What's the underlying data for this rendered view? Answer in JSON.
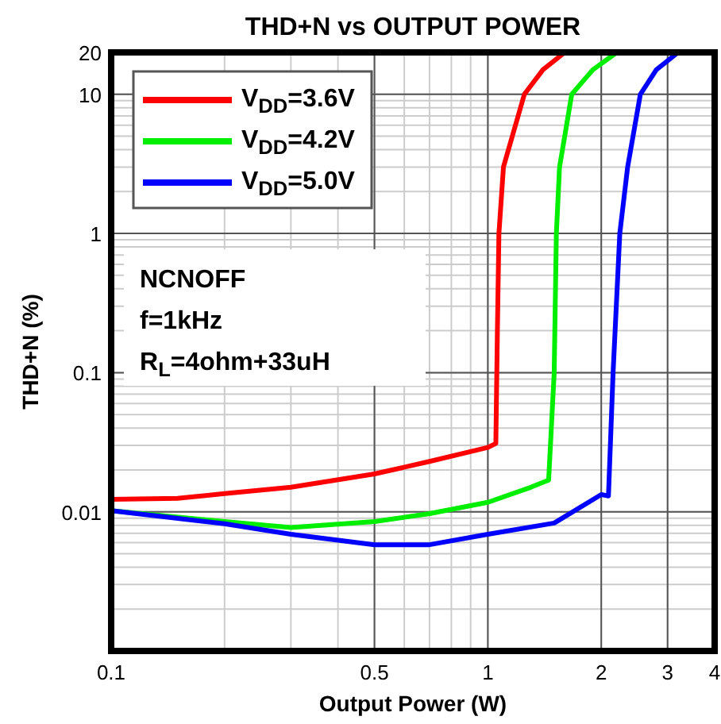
{
  "chart_data": {
    "type": "line",
    "title": "THD+N vs OUTPUT POWER",
    "xlabel": "Output Power (W)",
    "ylabel": "THD+N (%)",
    "log": "xy",
    "grid": true,
    "legend": "top left",
    "line_style": "solid",
    "xlim": [
      0.1,
      4
    ],
    "xticks": [
      0.1,
      0.5,
      1,
      2,
      3,
      4
    ],
    "ylim": [
      0.001,
      20
    ],
    "yticks": [
      {
        "value": 0.001,
        "label": null
      },
      0.01,
      0.1,
      1,
      10,
      20
    ],
    "annotations": [
      "NCNOFF",
      "f=1kHz",
      "R$_{L}$=4ohm+33uH"
    ],
    "series": [
      {
        "name": "V$_{DD}$=3.6V",
        "color": "#ff0000",
        "x": [
          0.1,
          0.15,
          0.2,
          0.3,
          0.5,
          0.7,
          1.0,
          1.05,
          1.06,
          1.07,
          1.1,
          1.25,
          1.4,
          1.6
        ],
        "values": [
          0.0123,
          0.0125,
          0.0135,
          0.015,
          0.0187,
          0.023,
          0.029,
          0.031,
          0.2,
          1,
          3,
          10,
          15,
          20
        ]
      },
      {
        "name": "V$_{DD}$=4.2V",
        "color": "#00ee00",
        "x": [
          0.1,
          0.2,
          0.3,
          0.5,
          0.7,
          1.0,
          1.3,
          1.45,
          1.5,
          1.52,
          1.55,
          1.67,
          1.9,
          2.2
        ],
        "values": [
          0.0102,
          0.0085,
          0.0077,
          0.0085,
          0.0097,
          0.0117,
          0.015,
          0.0169,
          0.1,
          1,
          3,
          10,
          15,
          20
        ]
      },
      {
        "name": "V$_{DD}$=5.0V",
        "color": "#0000ff",
        "x": [
          0.1,
          0.2,
          0.3,
          0.5,
          0.7,
          1.0,
          1.5,
          2.0,
          2.09,
          2.15,
          2.24,
          2.35,
          2.54,
          2.8,
          3.2
        ],
        "values": [
          0.0102,
          0.0082,
          0.0069,
          0.0058,
          0.0058,
          0.0069,
          0.0083,
          0.0133,
          0.013,
          0.1,
          1,
          3,
          10,
          15,
          20
        ]
      }
    ]
  }
}
